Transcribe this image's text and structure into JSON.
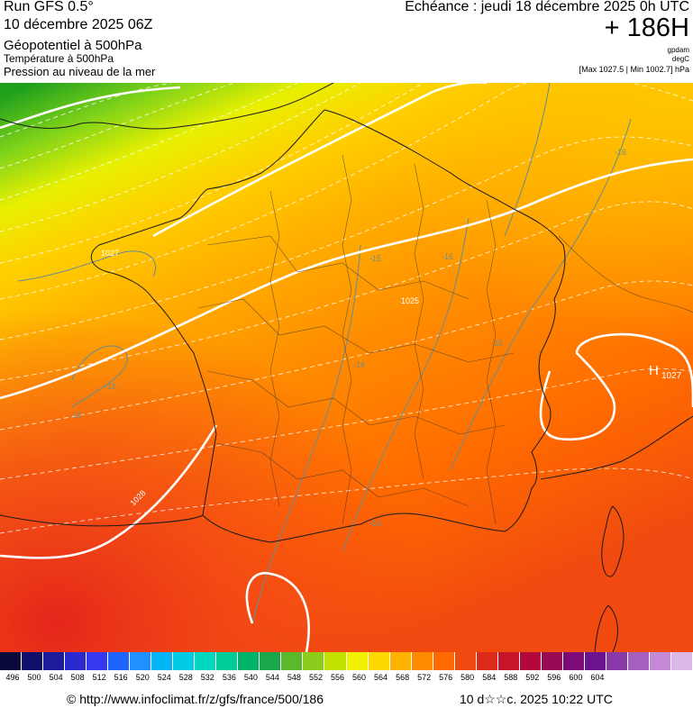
{
  "header": {
    "run": "Run GFS 0.5°",
    "run_date": "10 décembre 2025 06Z",
    "geopotential": "Géopotentiel à 500hPa",
    "temperature": "Température à 500hPa",
    "pressure": "Pression au niveau de la mer",
    "echeance": "Echéance : jeudi 18 décembre 2025 0h UTC",
    "hours": "+ 186H",
    "unit_gpdam": "gpdam",
    "unit_degc": "degC",
    "max_min": "[Max 1027.5 | Min 1002.7] hPa"
  },
  "map": {
    "high_label": "H",
    "high_value": "1027",
    "isobar_labels": [
      "1025",
      "1027",
      "1028"
    ],
    "isotherm_labels": [
      "-16",
      "-15",
      "-16",
      "-16",
      "-16",
      "-16",
      "-15",
      "-16"
    ]
  },
  "scale": {
    "ticks": [
      "496",
      "500",
      "504",
      "508",
      "512",
      "516",
      "520",
      "524",
      "528",
      "532",
      "536",
      "540",
      "544",
      "548",
      "552",
      "556",
      "560",
      "564",
      "568",
      "572",
      "576",
      "580",
      "584",
      "588",
      "592",
      "596",
      "600",
      "604"
    ],
    "colors": [
      "#0b0b3b",
      "#10106a",
      "#1c1c9a",
      "#2a2acf",
      "#3838f2",
      "#1e64ff",
      "#1e90ff",
      "#00b4f5",
      "#00cce6",
      "#00d7c0",
      "#00cc99",
      "#00b36b",
      "#1aa84a",
      "#5ab82c",
      "#8ccc1c",
      "#c2e000",
      "#f2f200",
      "#ffd700",
      "#ffb300",
      "#ff8c00",
      "#ff6a00",
      "#f04a10",
      "#dd2a1a",
      "#c81428",
      "#b2083c",
      "#990a55",
      "#7d0a78",
      "#6a1490",
      "#8a3aa8",
      "#a860c0",
      "#c48ad6",
      "#dcb8e8"
    ]
  },
  "footer": {
    "copyright": "© http://www.infoclimat.fr/z/gfs/france/500/186",
    "timestamp": "10 d☆☆c. 2025 10:22 UTC"
  }
}
